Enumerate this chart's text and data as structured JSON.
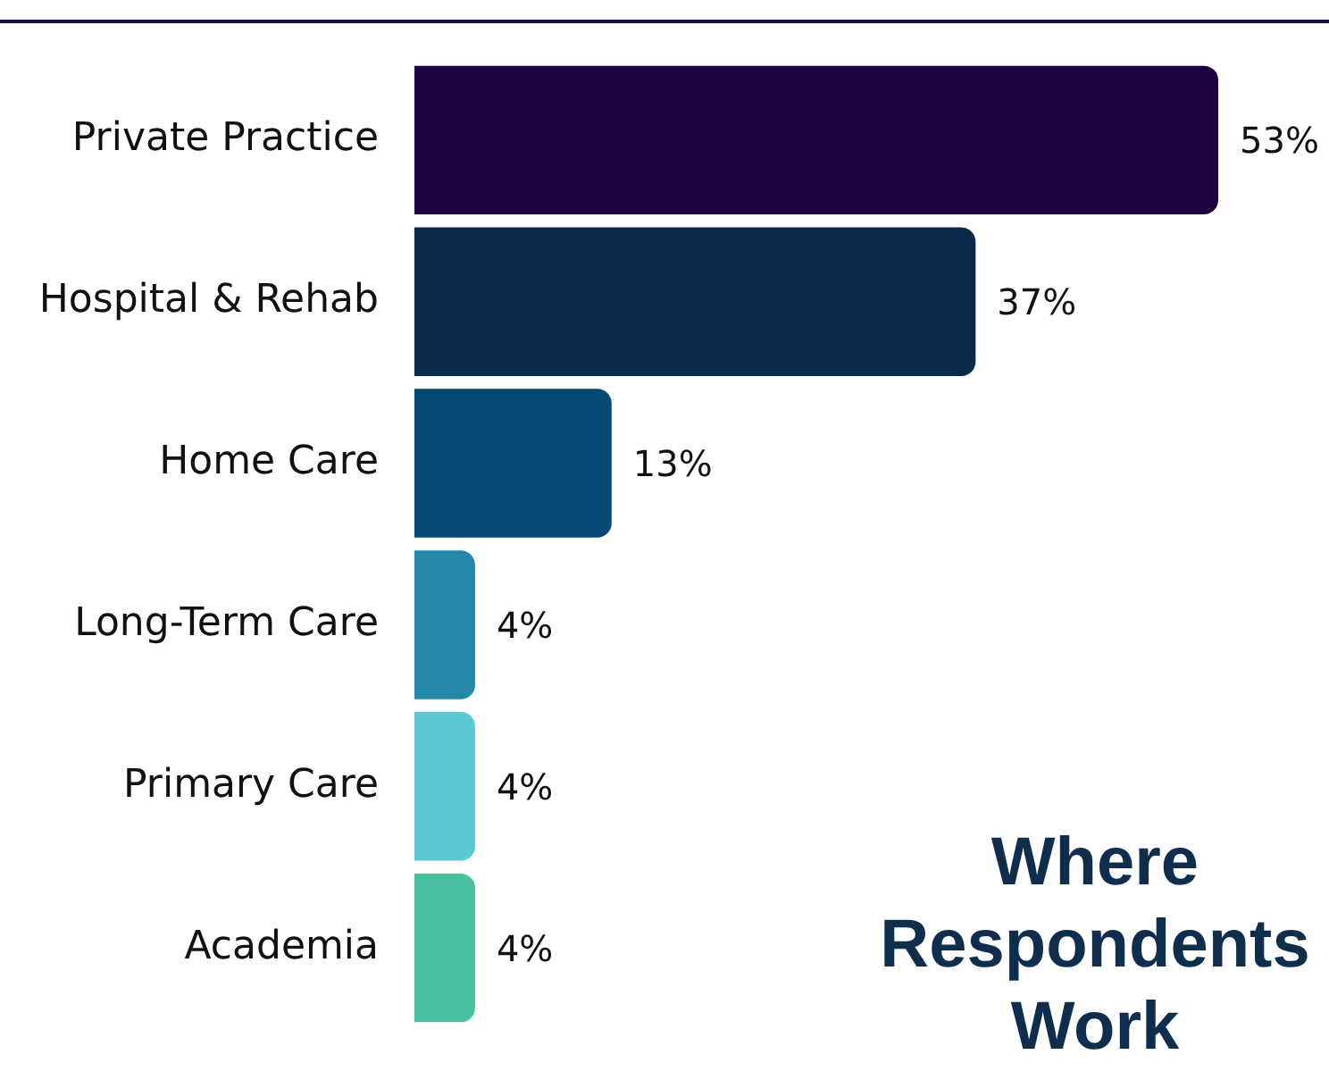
{
  "chart_data": {
    "type": "bar",
    "orientation": "horizontal",
    "title": "Where Respondents Work",
    "categories": [
      "Private Practice",
      "Hospital & Rehab",
      "Home Care",
      "Long-Term Care",
      "Primary Care",
      "Academia"
    ],
    "values": [
      53,
      37,
      13,
      4,
      4,
      4
    ],
    "colors": [
      "#1c0340",
      "#0b2a4a",
      "#064a73",
      "#2287a8",
      "#5bc8d3",
      "#47c1a0"
    ],
    "value_labels": [
      "53%",
      "37%",
      "13%",
      "4%",
      "4%",
      "4%"
    ],
    "grid": false,
    "legend": false
  }
}
